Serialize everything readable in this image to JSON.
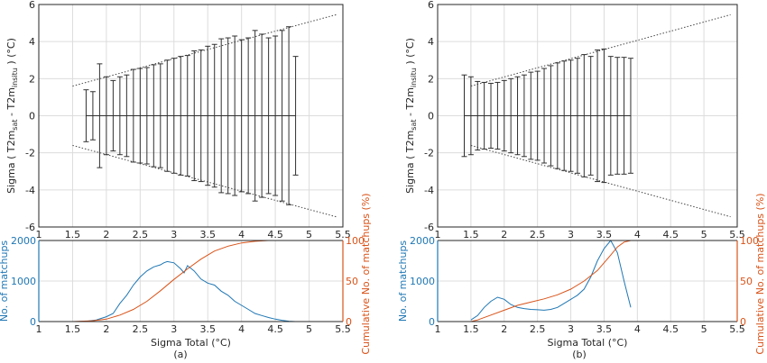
{
  "colors": {
    "axis": "#262626",
    "grid": "#dcdcdc",
    "errorbar": "#303030",
    "count_series": "#1f77b4",
    "cumulative_series": "#d95319"
  },
  "chart_data": [
    {
      "panel": "a-top",
      "type": "errorbar",
      "ylabel_parts": {
        "main": "Sigma ( T2m",
        "sub1": "sat",
        "mid": " - T2m",
        "sub2": "insitu",
        "end": " ) (°C)"
      },
      "xlim": [
        1,
        5.5
      ],
      "ylim": [
        -6,
        6
      ],
      "xticks": [
        "1",
        "1.5",
        "2",
        "2.5",
        "3",
        "3.5",
        "4",
        "4.5",
        "5",
        "5.5"
      ],
      "yticks": [
        "-6",
        "-4",
        "-2",
        "0",
        "2",
        "4",
        "6"
      ],
      "x": [
        1.7,
        1.8,
        1.9,
        2.0,
        2.1,
        2.2,
        2.3,
        2.4,
        2.5,
        2.6,
        2.7,
        2.8,
        2.9,
        3.0,
        3.1,
        3.2,
        3.3,
        3.4,
        3.5,
        3.6,
        3.7,
        3.8,
        3.9,
        4.0,
        4.1,
        4.2,
        4.3,
        4.4,
        4.5,
        4.6,
        4.7,
        4.8
      ],
      "half_width": [
        1.4,
        1.3,
        2.8,
        2.1,
        1.9,
        2.1,
        2.2,
        2.5,
        2.55,
        2.6,
        2.75,
        2.8,
        3.0,
        3.1,
        3.2,
        3.25,
        3.5,
        3.55,
        3.75,
        3.85,
        4.15,
        4.2,
        4.3,
        4.1,
        4.2,
        4.6,
        4.4,
        4.2,
        4.3,
        4.6,
        4.8,
        3.2
      ],
      "dotted_lines": [
        {
          "x": [
            1.5,
            5.4
          ],
          "y": [
            1.6,
            5.45
          ]
        },
        {
          "x": [
            1.5,
            5.4
          ],
          "y": [
            -1.6,
            -5.45
          ]
        }
      ],
      "zero_line": {
        "x": [
          1.7,
          4.8
        ],
        "y": 0
      }
    },
    {
      "panel": "a-bottom",
      "type": "line",
      "xlabel": "Sigma Total (°C)",
      "ylabel_left": "No. of matchups",
      "ylabel_right": "Cumulative No. of matchups (%)",
      "xlim": [
        1,
        5.5
      ],
      "ylim_left": [
        0,
        2000
      ],
      "ylim_right": [
        0,
        100
      ],
      "xticks": [
        "1",
        "1.5",
        "2",
        "2.5",
        "3",
        "3.5",
        "4",
        "4.5",
        "5",
        "5.5"
      ],
      "yticks_left": [
        "0",
        "1000",
        "2000"
      ],
      "yticks_right": [
        "0",
        "50",
        "100"
      ],
      "series": [
        {
          "axis": "left",
          "x": [
            1.55,
            1.7,
            1.85,
            2.0,
            2.1,
            2.2,
            2.3,
            2.4,
            2.5,
            2.6,
            2.7,
            2.8,
            2.85,
            2.9,
            3.0,
            3.1,
            3.15,
            3.2,
            3.3,
            3.4,
            3.5,
            3.6,
            3.7,
            3.8,
            3.9,
            4.0,
            4.1,
            4.2,
            4.3,
            4.4,
            4.5,
            4.6,
            4.7,
            4.8
          ],
          "values": [
            0,
            5,
            40,
            120,
            200,
            450,
            650,
            900,
            1100,
            1250,
            1350,
            1400,
            1450,
            1480,
            1450,
            1300,
            1200,
            1380,
            1250,
            1050,
            950,
            900,
            750,
            650,
            500,
            400,
            300,
            200,
            150,
            100,
            60,
            30,
            10,
            0
          ]
        },
        {
          "axis": "right",
          "x": [
            1.5,
            1.8,
            2.0,
            2.2,
            2.4,
            2.6,
            2.8,
            3.0,
            3.2,
            3.4,
            3.6,
            3.8,
            4.0,
            4.2,
            4.4,
            4.6,
            4.8,
            5.0,
            5.4
          ],
          "values": [
            0,
            1,
            3,
            8,
            15,
            25,
            38,
            52,
            65,
            77,
            87,
            93,
            97,
            99,
            100,
            100,
            100,
            100,
            100
          ]
        }
      ],
      "caption": "(a)"
    },
    {
      "panel": "b-top",
      "type": "errorbar",
      "ylabel_parts": {
        "main": "Sigma ( T2m",
        "sub1": "sat",
        "mid": " - T2m",
        "sub2": "insitu",
        "end": " ) (°C)"
      },
      "xlim": [
        1,
        5.5
      ],
      "ylim": [
        -6,
        6
      ],
      "xticks": [
        "1",
        "1.5",
        "2",
        "2.5",
        "3",
        "3.5",
        "4",
        "4.5",
        "5",
        "5.5"
      ],
      "yticks": [
        "-6",
        "-4",
        "-2",
        "0",
        "2",
        "4",
        "6"
      ],
      "x": [
        1.4,
        1.5,
        1.6,
        1.7,
        1.8,
        1.9,
        2.0,
        2.1,
        2.2,
        2.3,
        2.4,
        2.5,
        2.6,
        2.7,
        2.8,
        2.9,
        3.0,
        3.1,
        3.2,
        3.3,
        3.4,
        3.5,
        3.6,
        3.7,
        3.8,
        3.9
      ],
      "half_width": [
        2.2,
        2.1,
        1.85,
        1.8,
        1.75,
        1.8,
        1.9,
        2.0,
        2.1,
        2.2,
        2.35,
        2.4,
        2.55,
        2.7,
        2.85,
        2.95,
        3.0,
        3.1,
        3.3,
        3.2,
        3.55,
        3.6,
        3.2,
        3.15,
        3.15,
        3.1
      ],
      "dotted_lines": [
        {
          "x": [
            1.5,
            5.4
          ],
          "y": [
            1.6,
            5.45
          ]
        },
        {
          "x": [
            1.5,
            5.4
          ],
          "y": [
            -1.6,
            -5.45
          ]
        }
      ],
      "zero_line": {
        "x": [
          1.4,
          3.9
        ],
        "y": 0
      }
    },
    {
      "panel": "b-bottom",
      "type": "line",
      "xlabel": "Sigma Total (°C)",
      "ylabel_left": "No. of matchups",
      "ylabel_right": "Cumulative No. of matchups (%)",
      "xlim": [
        1,
        5.5
      ],
      "ylim_left": [
        0,
        2000
      ],
      "ylim_right": [
        0,
        100
      ],
      "xticks": [
        "1",
        "1.5",
        "2",
        "2.5",
        "3",
        "3.5",
        "4",
        "4.5",
        "5",
        "5.5"
      ],
      "yticks_left": [
        "0",
        "1000",
        "2000"
      ],
      "yticks_right": [
        "0",
        "50",
        "100"
      ],
      "series": [
        {
          "axis": "left",
          "x": [
            1.5,
            1.6,
            1.7,
            1.8,
            1.9,
            2.0,
            2.1,
            2.2,
            2.3,
            2.4,
            2.5,
            2.6,
            2.7,
            2.8,
            2.9,
            3.0,
            3.1,
            3.2,
            3.3,
            3.4,
            3.5,
            3.6,
            3.7,
            3.8,
            3.9
          ],
          "values": [
            40,
            150,
            350,
            500,
            600,
            550,
            420,
            350,
            320,
            300,
            290,
            280,
            300,
            350,
            450,
            550,
            650,
            800,
            1100,
            1500,
            1800,
            2000,
            1700,
            1000,
            350
          ]
        },
        {
          "axis": "right",
          "x": [
            1.5,
            1.6,
            1.8,
            2.0,
            2.2,
            2.4,
            2.6,
            2.8,
            3.0,
            3.2,
            3.4,
            3.6,
            3.7,
            3.8,
            3.9,
            4.0,
            4.5,
            5.0,
            5.4
          ],
          "values": [
            0,
            2,
            8,
            14,
            20,
            24,
            28,
            33,
            40,
            50,
            63,
            82,
            92,
            98,
            100,
            100,
            100,
            100,
            100
          ]
        }
      ],
      "caption": "(b)"
    }
  ]
}
